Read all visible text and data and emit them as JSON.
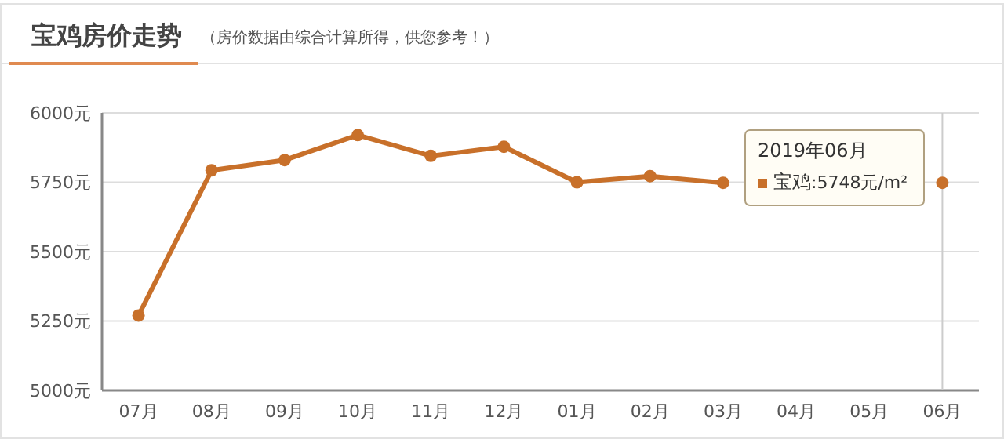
{
  "chart_data": {
    "type": "line",
    "title": "宝鸡房价走势",
    "subtitle": "（房价数据由综合计算所得，供您参考！）",
    "categories": [
      "07月",
      "08月",
      "09月",
      "10月",
      "11月",
      "12月",
      "01月",
      "02月",
      "03月",
      "04月",
      "05月",
      "06月"
    ],
    "series": [
      {
        "name": "宝鸡",
        "color": "#c8702a",
        "values": [
          5270,
          5793,
          5830,
          5920,
          5845,
          5878,
          5750,
          5772,
          5748,
          null,
          null,
          5748
        ]
      }
    ],
    "ylim": [
      5000,
      6000
    ],
    "yticks": [
      {
        "value": 5000,
        "label": "5000元"
      },
      {
        "value": 5250,
        "label": "5250元"
      },
      {
        "value": 5500,
        "label": "5500元"
      },
      {
        "value": 5750,
        "label": "5750元"
      },
      {
        "value": 6000,
        "label": "6000元"
      }
    ],
    "grid": "y",
    "marker": "circle",
    "line_style": "solid",
    "legend": "top right",
    "ref_lines": [
      {
        "axis": "x",
        "value": "06月",
        "color": "#cccccc",
        "line_style": "solid"
      }
    ],
    "annotations": [
      "2019年06月",
      ":5748元/m²"
    ]
  }
}
